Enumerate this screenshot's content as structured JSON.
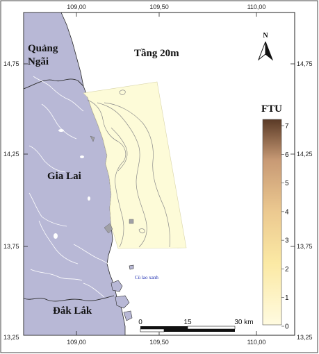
{
  "map": {
    "title": "Tầng 20m",
    "north_label": "N",
    "provinces": [
      "Quảng",
      "Ngãi",
      "Gia Lai",
      "Đắk Lắk"
    ],
    "island_label": "Cù lao xanh",
    "lon_ticks": [
      "109,00",
      "109,50",
      "110,00"
    ],
    "lat_ticks": [
      "14,75",
      "14,25",
      "13,75",
      "13,25"
    ],
    "legend": {
      "title": "FTU",
      "ticks": [
        "0",
        "1",
        "2",
        "3",
        "4",
        "5",
        "6",
        "7"
      ],
      "color_low": "#fffbe0",
      "color_high": "#5a3a26"
    },
    "scale_bar": {
      "labels": [
        "0",
        "15",
        "30 km"
      ]
    },
    "colors": {
      "land": "#b8b8d6",
      "land_border": "#2a2a2a",
      "river": "#ffffff",
      "data_fill": "#fdfbd8",
      "contour": "#8a8a8a"
    }
  }
}
